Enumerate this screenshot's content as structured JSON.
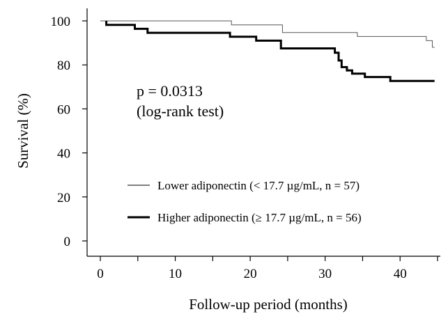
{
  "chart_data": {
    "type": "line",
    "subtype": "kaplan-meier-step",
    "xlabel": "Follow-up period (months)",
    "ylabel": "Survival (%)",
    "xlim": [
      0,
      45
    ],
    "ylim": [
      0,
      100
    ],
    "xticks": [
      0,
      10,
      20,
      30,
      40
    ],
    "yticks": [
      0,
      20,
      40,
      60,
      80,
      100
    ],
    "grid": false,
    "legend_placement": "bottom-right",
    "annotations": [
      "p = 0.0313",
      "(log-rank test)"
    ],
    "series": [
      {
        "name": "Lower adiponectin (< 17.7 µg/mL, n = 57)",
        "line_weight": "thin",
        "points": [
          [
            0,
            100
          ],
          [
            17.5,
            100
          ],
          [
            17.5,
            98.2
          ],
          [
            24.3,
            98.2
          ],
          [
            24.3,
            94.7
          ],
          [
            34.3,
            94.7
          ],
          [
            34.3,
            92.9
          ],
          [
            43.5,
            92.9
          ],
          [
            43.5,
            91.0
          ],
          [
            44.3,
            91.0
          ],
          [
            44.3,
            88.0
          ],
          [
            44.6,
            88.0
          ]
        ]
      },
      {
        "name": "Higher adiponectin (≥ 17.7 µg/mL, n = 56)",
        "line_weight": "thick",
        "points": [
          [
            0.8,
            100
          ],
          [
            0.8,
            98.2
          ],
          [
            4.6,
            98.2
          ],
          [
            4.6,
            96.4
          ],
          [
            6.3,
            96.4
          ],
          [
            6.3,
            94.6
          ],
          [
            17.3,
            94.6
          ],
          [
            17.3,
            92.8
          ],
          [
            20.8,
            92.8
          ],
          [
            20.8,
            91.0
          ],
          [
            24.1,
            91.0
          ],
          [
            24.1,
            87.5
          ],
          [
            31.3,
            87.5
          ],
          [
            31.3,
            85.5
          ],
          [
            31.8,
            85.5
          ],
          [
            31.8,
            82.0
          ],
          [
            32.2,
            82.0
          ],
          [
            32.2,
            79.0
          ],
          [
            32.9,
            79.0
          ],
          [
            32.9,
            77.5
          ],
          [
            33.6,
            77.5
          ],
          [
            33.6,
            76.0
          ],
          [
            35.3,
            76.0
          ],
          [
            35.3,
            74.5
          ],
          [
            38.7,
            74.5
          ],
          [
            38.7,
            72.7
          ],
          [
            44.6,
            72.7
          ]
        ]
      }
    ]
  }
}
